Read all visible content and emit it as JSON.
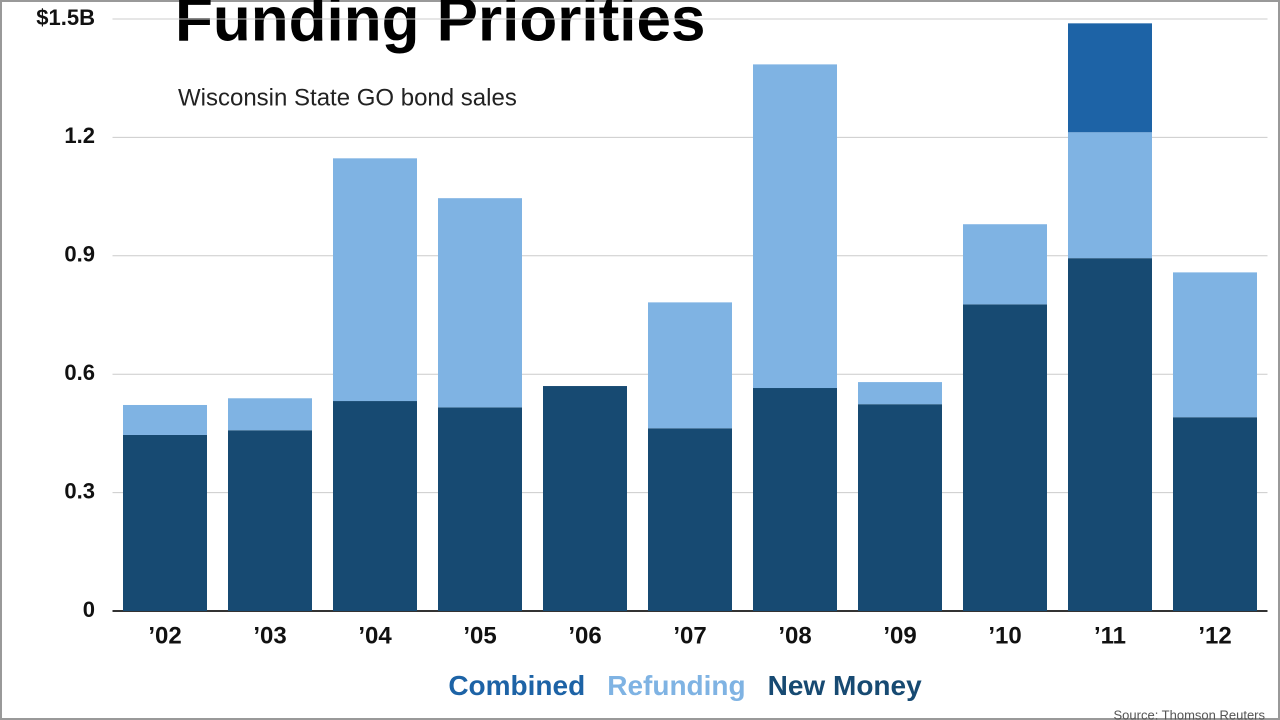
{
  "chart_data": {
    "type": "stacked_bar",
    "title": "Funding Priorities",
    "subtitle": "Wisconsin State GO bond sales",
    "source": "Source: Thomson Reuters",
    "categories": [
      "’02",
      "’03",
      "’04",
      "’05",
      "’06",
      "’07",
      "’08",
      "’09",
      "’10",
      "’11",
      "’12"
    ],
    "series": [
      {
        "name": "Combined",
        "color": "#1d63a6",
        "values": [
          0,
          0,
          0,
          0,
          0,
          0,
          0,
          0,
          0,
          0.276,
          0
        ]
      },
      {
        "name": "Refunding",
        "color": "#7fb3e3",
        "values": [
          0.076,
          0.081,
          0.615,
          0.53,
          0,
          0.319,
          0.82,
          0.056,
          0.203,
          0.319,
          0.367
        ]
      },
      {
        "name": "New Money",
        "color": "#174a72",
        "values": [
          0.446,
          0.458,
          0.532,
          0.516,
          0.57,
          0.463,
          0.565,
          0.524,
          0.777,
          0.894,
          0.491
        ]
      }
    ],
    "ylim": [
      0,
      1.5
    ],
    "yticks": [
      0,
      0.3,
      0.6,
      0.9,
      1.2,
      {
        "value": 1.5,
        "label": "$1.5B"
      }
    ],
    "grid": true
  }
}
